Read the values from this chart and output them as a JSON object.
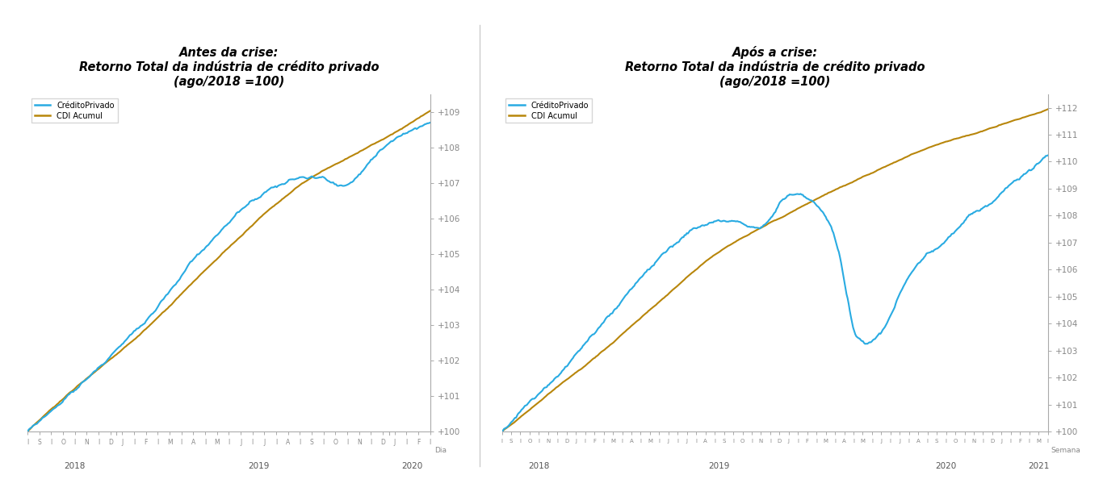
{
  "title_left_line1": "Antes da crise:",
  "title_left_line2": "Retorno Total da indústria de crédito privado",
  "title_left_line3": "(ago/2018 =100)",
  "title_right_line1": "Após a crise:",
  "title_right_line2": "Retorno Total da indústria de crédito privado",
  "title_right_line3": "(ago/2018 =100)",
  "legend_label1": "CréditoPrivado",
  "legend_label2": "CDI Acumul",
  "color_credito": "#29ABE2",
  "color_cdi": "#B8860B",
  "left_ylim": [
    100.0,
    109.5
  ],
  "right_ylim": [
    100.0,
    112.5
  ],
  "left_yticks": [
    100,
    101,
    102,
    103,
    104,
    105,
    106,
    107,
    108,
    109
  ],
  "right_yticks": [
    100,
    101,
    102,
    103,
    104,
    105,
    106,
    107,
    108,
    109,
    110,
    111,
    112
  ],
  "background_color": "#FFFFFF",
  "left_months": [
    "I",
    "S",
    "I",
    "O",
    "I",
    "N",
    "I",
    "D",
    "J",
    "I",
    "F",
    "I",
    "M",
    "I",
    "A",
    "I",
    "M",
    "I",
    "J",
    "I",
    "J",
    "I",
    "A",
    "I",
    "S",
    "I",
    "O",
    "I",
    "N",
    "I",
    "D",
    "J",
    "I",
    "F",
    "I"
  ],
  "right_months": [
    "IS",
    "IO",
    "IN",
    "ID",
    "J",
    "IF",
    "IM",
    "IA",
    "IM",
    "IJ",
    "IJ",
    "IA",
    "IS",
    "IO",
    "IN",
    "ID",
    "J",
    "IF",
    "IM",
    "IA",
    "IM",
    "IJ",
    "IJ",
    "IA",
    "IS",
    "IO",
    "IN",
    "ID",
    "J",
    "IF",
    "IM",
    "IA",
    "IM",
    "I"
  ],
  "left_year_labels": [
    "2018",
    "2019",
    "2020"
  ],
  "right_year_labels": [
    "2018",
    "2019",
    "2020",
    "2021"
  ],
  "bottom_left_label": "Dia",
  "bottom_right_label": "Semana"
}
